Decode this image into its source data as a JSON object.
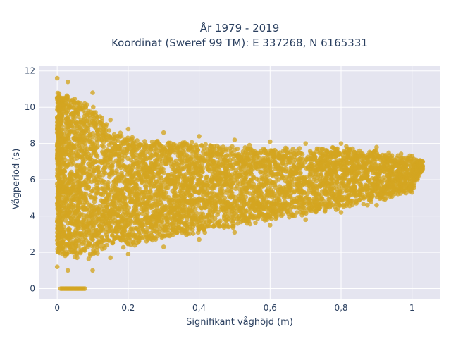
{
  "chart_data": {
    "type": "scatter",
    "title_lines": [
      "År 1979 - 2019",
      "Koordinat (Sweref 99 TM): E 337268, N 6165331"
    ],
    "xlabel": "Signifikant våghöjd (m)",
    "ylabel": "Vågperiod (s)",
    "xlim": [
      -0.05,
      1.08
    ],
    "ylim": [
      -0.6,
      12.3
    ],
    "x_ticks": [
      0,
      0.2,
      0.4,
      0.6,
      0.8,
      1
    ],
    "x_tick_labels": [
      "0",
      "0,2",
      "0,4",
      "0,6",
      "0,8",
      "1"
    ],
    "y_ticks": [
      0,
      2,
      4,
      6,
      8,
      10,
      12
    ],
    "y_tick_labels": [
      "0",
      "2",
      "4",
      "6",
      "8",
      "10",
      "12"
    ],
    "grid": true,
    "legend": "none",
    "series": [
      {
        "marker_color": "#D4A520",
        "envelope": [
          {
            "x": 0.0,
            "y_min": 1.2,
            "y_max": 11.6
          },
          {
            "x": 0.03,
            "y_min": 1.0,
            "y_max": 11.4
          },
          {
            "x": 0.1,
            "y_min": 1.0,
            "y_max": 10.8
          },
          {
            "x": 0.15,
            "y_min": 1.7,
            "y_max": 9.3
          },
          {
            "x": 0.2,
            "y_min": 1.9,
            "y_max": 8.8
          },
          {
            "x": 0.3,
            "y_min": 2.3,
            "y_max": 8.6
          },
          {
            "x": 0.4,
            "y_min": 2.7,
            "y_max": 8.4
          },
          {
            "x": 0.5,
            "y_min": 3.1,
            "y_max": 8.2
          },
          {
            "x": 0.6,
            "y_min": 3.5,
            "y_max": 8.1
          },
          {
            "x": 0.7,
            "y_min": 3.8,
            "y_max": 8.0
          },
          {
            "x": 0.8,
            "y_min": 4.2,
            "y_max": 8.0
          },
          {
            "x": 0.9,
            "y_min": 4.6,
            "y_max": 7.8
          },
          {
            "x": 1.0,
            "y_min": 5.3,
            "y_max": 7.3
          },
          {
            "x": 1.03,
            "y_min": 6.6,
            "y_max": 7.0
          }
        ],
        "zero_points_x_range": [
          0.01,
          0.08
        ],
        "zero_points_y": 0
      }
    ]
  }
}
